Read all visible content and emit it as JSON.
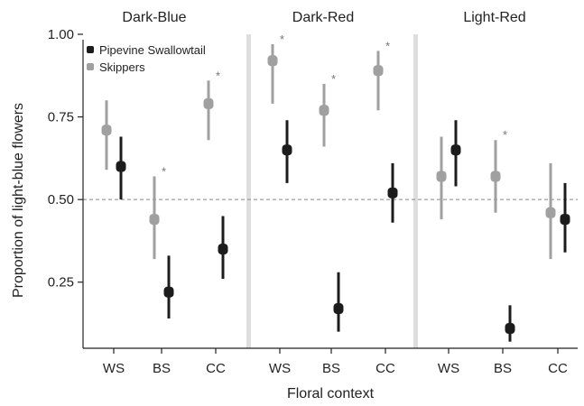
{
  "chart_data": {
    "type": "scatter",
    "xlabel": "Floral context",
    "ylabel": "Proportion of  light-blue flowers",
    "ylim": [
      0.05,
      1.0
    ],
    "yticks": [
      "0.25",
      "0.50",
      "0.75",
      "1.00"
    ],
    "reference_line": 0.5,
    "categories": [
      "WS",
      "BS",
      "CC"
    ],
    "panels": [
      "Dark-Blue",
      "Dark-Red",
      "Light-Red"
    ],
    "legend_position": "top-left",
    "colors": {
      "Pipevine Swallowtail": "#1c1c1c",
      "Skippers": "#a0a0a0",
      "separator": "#dedede",
      "reference_line": "#888888"
    },
    "series": [
      {
        "name": "Pipevine Swallowtail",
        "points": [
          {
            "panel": "Dark-Blue",
            "x": "WS",
            "y": 0.6,
            "low": 0.5,
            "high": 0.69,
            "star": ""
          },
          {
            "panel": "Dark-Blue",
            "x": "BS",
            "y": 0.22,
            "low": 0.14,
            "high": 0.33,
            "star": ""
          },
          {
            "panel": "Dark-Blue",
            "x": "CC",
            "y": 0.35,
            "low": 0.26,
            "high": 0.45,
            "star": ""
          },
          {
            "panel": "Dark-Red",
            "x": "WS",
            "y": 0.65,
            "low": 0.55,
            "high": 0.74,
            "star": ""
          },
          {
            "panel": "Dark-Red",
            "x": "BS",
            "y": 0.17,
            "low": 0.1,
            "high": 0.28,
            "star": ""
          },
          {
            "panel": "Dark-Red",
            "x": "CC",
            "y": 0.52,
            "low": 0.43,
            "high": 0.61,
            "star": ""
          },
          {
            "panel": "Light-Red",
            "x": "WS",
            "y": 0.65,
            "low": 0.54,
            "high": 0.74,
            "star": ""
          },
          {
            "panel": "Light-Red",
            "x": "BS",
            "y": 0.11,
            "low": 0.07,
            "high": 0.18,
            "star": ""
          },
          {
            "panel": "Light-Red",
            "x": "CC",
            "y": 0.44,
            "low": 0.34,
            "high": 0.55,
            "star": ""
          }
        ]
      },
      {
        "name": "Skippers",
        "points": [
          {
            "panel": "Dark-Blue",
            "x": "WS",
            "y": 0.71,
            "low": 0.59,
            "high": 0.8,
            "star": ""
          },
          {
            "panel": "Dark-Blue",
            "x": "BS",
            "y": 0.44,
            "low": 0.32,
            "high": 0.57,
            "star": "*"
          },
          {
            "panel": "Dark-Blue",
            "x": "CC",
            "y": 0.79,
            "low": 0.68,
            "high": 0.86,
            "star": "*"
          },
          {
            "panel": "Dark-Red",
            "x": "WS",
            "y": 0.92,
            "low": 0.79,
            "high": 0.97,
            "star": "*"
          },
          {
            "panel": "Dark-Red",
            "x": "BS",
            "y": 0.77,
            "low": 0.66,
            "high": 0.85,
            "star": "*"
          },
          {
            "panel": "Dark-Red",
            "x": "CC",
            "y": 0.89,
            "low": 0.77,
            "high": 0.95,
            "star": "*"
          },
          {
            "panel": "Light-Red",
            "x": "WS",
            "y": 0.57,
            "low": 0.44,
            "high": 0.69,
            "star": ""
          },
          {
            "panel": "Light-Red",
            "x": "BS",
            "y": 0.57,
            "low": 0.46,
            "high": 0.68,
            "star": "*"
          },
          {
            "panel": "Light-Red",
            "x": "CC",
            "y": 0.46,
            "low": 0.32,
            "high": 0.61,
            "star": ""
          }
        ]
      }
    ]
  }
}
